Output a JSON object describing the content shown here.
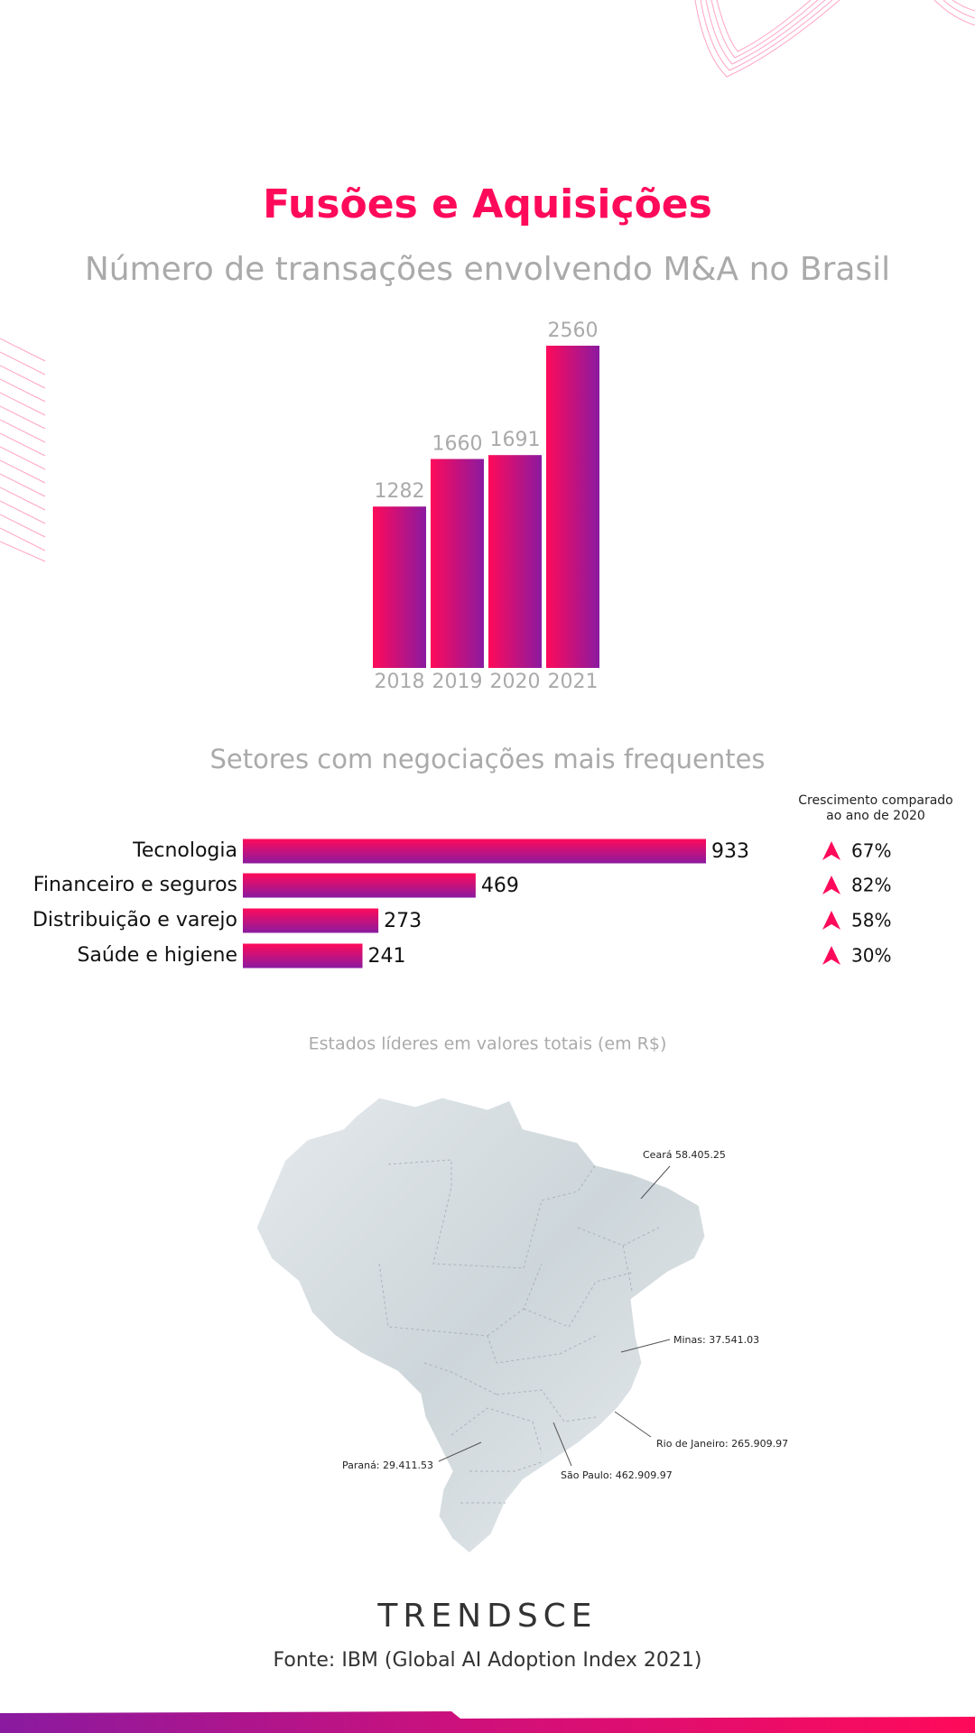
{
  "header": {
    "title": "Fusões e Aquisições",
    "subtitle": "Número de transações envolvendo M&A no Brasil"
  },
  "chart_data": [
    {
      "type": "bar",
      "categories": [
        "2018",
        "2019",
        "2020",
        "2021"
      ],
      "values": [
        1282,
        1660,
        1691,
        2560
      ],
      "colors": [
        "#ff0a5a",
        "#8a1aa0"
      ]
    },
    {
      "type": "barh",
      "title": "Setores com negociações mais frequentes",
      "categories": [
        "Tecnologia",
        "Financeiro e seguros",
        "Distribuição e varejo",
        "Saúde e higiene"
      ],
      "values": [
        933,
        469,
        273,
        241
      ],
      "colors": [
        "#ff0a5a",
        "#8a1aa0"
      ],
      "growth": {
        "title": [
          "Crescimento comparado",
          "ao ano de 2020"
        ],
        "values": [
          67,
          82,
          58,
          30
        ],
        "value_labels": [
          "67%",
          "82%",
          "58%",
          "30%"
        ]
      }
    }
  ],
  "map": {
    "title": "Estados líderes em valores totais (em R$)",
    "labels": [
      "Ceará 58.405.25",
      "Minas: 37.541.03",
      "Rio de Janeiro: 265.909.97",
      "São Paulo: 462.909.97",
      "Paraná: 29.411.53"
    ]
  },
  "footer": {
    "brand": "TRENDSCE",
    "source": "Fonte: IBM (Global AI Adoption Index 2021)"
  }
}
